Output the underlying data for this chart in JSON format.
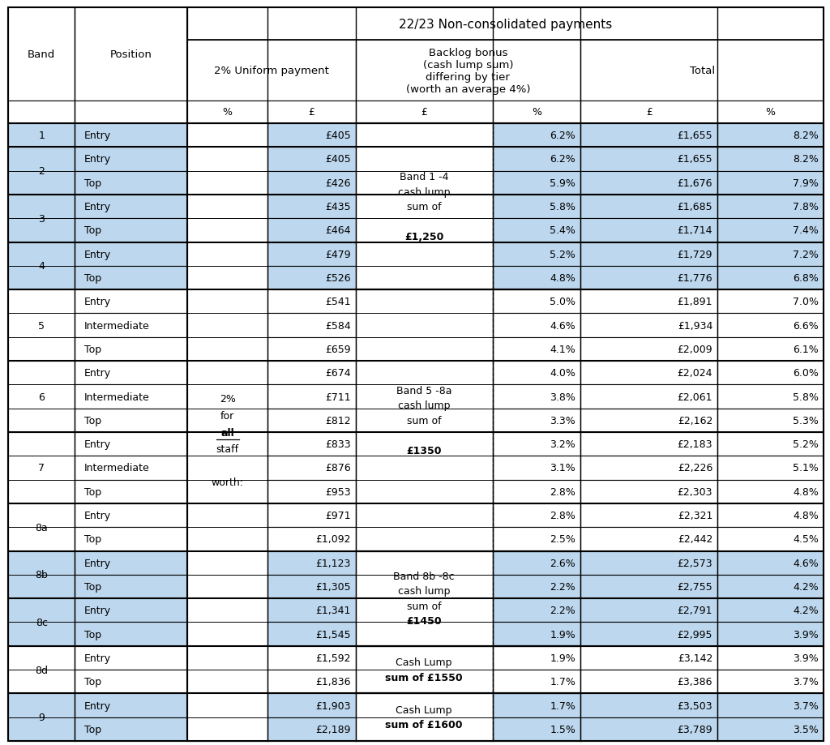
{
  "title": "22/23 Non-consolidated payments",
  "merged_col_headers": {
    "uniform": "2% Uniform payment",
    "backlog": "Backlog bonus\n(cash lump sum)\ndiffering by tier\n(worth an average 4%)",
    "total": "Total"
  },
  "rows": [
    {
      "band": "1",
      "position": "Entry",
      "uniform_gbp": "£405",
      "backlog_pct": "6.2%",
      "total_gbp": "£1,655",
      "total_pct": "8.2%",
      "blue": true
    },
    {
      "band": "2",
      "position": "Entry",
      "uniform_gbp": "£405",
      "backlog_pct": "6.2%",
      "total_gbp": "£1,655",
      "total_pct": "8.2%",
      "blue": true
    },
    {
      "band": "2",
      "position": "Top",
      "uniform_gbp": "£426",
      "backlog_pct": "5.9%",
      "total_gbp": "£1,676",
      "total_pct": "7.9%",
      "blue": true
    },
    {
      "band": "3",
      "position": "Entry",
      "uniform_gbp": "£435",
      "backlog_pct": "5.8%",
      "total_gbp": "£1,685",
      "total_pct": "7.8%",
      "blue": true
    },
    {
      "band": "3",
      "position": "Top",
      "uniform_gbp": "£464",
      "backlog_pct": "5.4%",
      "total_gbp": "£1,714",
      "total_pct": "7.4%",
      "blue": true
    },
    {
      "band": "4",
      "position": "Entry",
      "uniform_gbp": "£479",
      "backlog_pct": "5.2%",
      "total_gbp": "£1,729",
      "total_pct": "7.2%",
      "blue": true
    },
    {
      "band": "4",
      "position": "Top",
      "uniform_gbp": "£526",
      "backlog_pct": "4.8%",
      "total_gbp": "£1,776",
      "total_pct": "6.8%",
      "blue": true
    },
    {
      "band": "5",
      "position": "Entry",
      "uniform_gbp": "£541",
      "backlog_pct": "5.0%",
      "total_gbp": "£1,891",
      "total_pct": "7.0%",
      "blue": false
    },
    {
      "band": "5",
      "position": "Intermediate",
      "uniform_gbp": "£584",
      "backlog_pct": "4.6%",
      "total_gbp": "£1,934",
      "total_pct": "6.6%",
      "blue": false
    },
    {
      "band": "5",
      "position": "Top",
      "uniform_gbp": "£659",
      "backlog_pct": "4.1%",
      "total_gbp": "£2,009",
      "total_pct": "6.1%",
      "blue": false
    },
    {
      "band": "6",
      "position": "Entry",
      "uniform_gbp": "£674",
      "backlog_pct": "4.0%",
      "total_gbp": "£2,024",
      "total_pct": "6.0%",
      "blue": false
    },
    {
      "band": "6",
      "position": "Intermediate",
      "uniform_gbp": "£711",
      "backlog_pct": "3.8%",
      "total_gbp": "£2,061",
      "total_pct": "5.8%",
      "blue": false
    },
    {
      "band": "6",
      "position": "Top",
      "uniform_gbp": "£812",
      "backlog_pct": "3.3%",
      "total_gbp": "£2,162",
      "total_pct": "5.3%",
      "blue": false
    },
    {
      "band": "7",
      "position": "Entry",
      "uniform_gbp": "£833",
      "backlog_pct": "3.2%",
      "total_gbp": "£2,183",
      "total_pct": "5.2%",
      "blue": false
    },
    {
      "band": "7",
      "position": "Intermediate",
      "uniform_gbp": "£876",
      "backlog_pct": "3.1%",
      "total_gbp": "£2,226",
      "total_pct": "5.1%",
      "blue": false
    },
    {
      "band": "7",
      "position": "Top",
      "uniform_gbp": "£953",
      "backlog_pct": "2.8%",
      "total_gbp": "£2,303",
      "total_pct": "4.8%",
      "blue": false
    },
    {
      "band": "8a",
      "position": "Entry",
      "uniform_gbp": "£971",
      "backlog_pct": "2.8%",
      "total_gbp": "£2,321",
      "total_pct": "4.8%",
      "blue": false
    },
    {
      "band": "8a",
      "position": "Top",
      "uniform_gbp": "£1,092",
      "backlog_pct": "2.5%",
      "total_gbp": "£2,442",
      "total_pct": "4.5%",
      "blue": false
    },
    {
      "band": "8b",
      "position": "Entry",
      "uniform_gbp": "£1,123",
      "backlog_pct": "2.6%",
      "total_gbp": "£2,573",
      "total_pct": "4.6%",
      "blue": true
    },
    {
      "band": "8b",
      "position": "Top",
      "uniform_gbp": "£1,305",
      "backlog_pct": "2.2%",
      "total_gbp": "£2,755",
      "total_pct": "4.2%",
      "blue": true
    },
    {
      "band": "8c",
      "position": "Entry",
      "uniform_gbp": "£1,341",
      "backlog_pct": "2.2%",
      "total_gbp": "£2,791",
      "total_pct": "4.2%",
      "blue": true
    },
    {
      "band": "8c",
      "position": "Top",
      "uniform_gbp": "£1,545",
      "backlog_pct": "1.9%",
      "total_gbp": "£2,995",
      "total_pct": "3.9%",
      "blue": true
    },
    {
      "band": "8d",
      "position": "Entry",
      "uniform_gbp": "£1,592",
      "backlog_pct": "1.9%",
      "total_gbp": "£3,142",
      "total_pct": "3.9%",
      "blue": false
    },
    {
      "band": "8d",
      "position": "Top",
      "uniform_gbp": "£1,836",
      "backlog_pct": "1.7%",
      "total_gbp": "£3,386",
      "total_pct": "3.7%",
      "blue": false
    },
    {
      "band": "9",
      "position": "Entry",
      "uniform_gbp": "£1,903",
      "backlog_pct": "1.7%",
      "total_gbp": "£3,503",
      "total_pct": "3.7%",
      "blue": true
    },
    {
      "band": "9",
      "position": "Top",
      "uniform_gbp": "£2,189",
      "backlog_pct": "1.5%",
      "total_gbp": "£3,789",
      "total_pct": "3.5%",
      "blue": true
    }
  ],
  "backlog_groups": [
    {
      "start": 0,
      "end": 6,
      "lines": [
        "Band 1 -4",
        "cash lump",
        "sum of",
        "",
        "£1,250"
      ],
      "bold_last": true
    },
    {
      "start": 7,
      "end": 17,
      "lines": [
        "Band 5 -8a",
        "cash lump",
        "sum of",
        "",
        "£1350"
      ],
      "bold_last": true
    },
    {
      "start": 18,
      "end": 21,
      "lines": [
        "Band 8b -8c",
        "cash lump",
        "sum of",
        "£1450"
      ],
      "bold_last": true
    },
    {
      "start": 22,
      "end": 23,
      "lines": [
        "Cash Lump",
        "sum of £1550"
      ],
      "bold_last": true
    },
    {
      "start": 24,
      "end": 25,
      "lines": [
        "Cash Lump",
        "sum of £1600"
      ],
      "bold_last": true
    }
  ],
  "blue_color": "#BDD7EE",
  "white_color": "#FFFFFF",
  "border_color": "#000000",
  "font_size": 9,
  "header_font_size": 9.5
}
